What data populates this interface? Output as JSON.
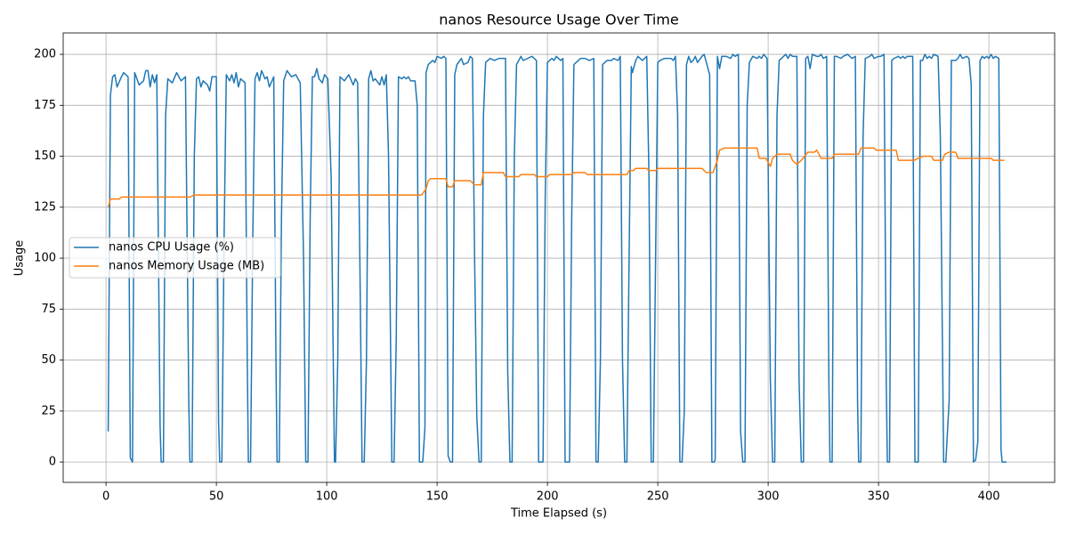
{
  "chart_data": {
    "type": "line",
    "title": "nanos Resource Usage Over Time",
    "xlabel": "Time Elapsed (s)",
    "ylabel": "Usage",
    "xlim": [
      -19.4,
      429.8
    ],
    "ylim": [
      -10,
      210.5
    ],
    "xticks": [
      0,
      50,
      100,
      150,
      200,
      250,
      300,
      350,
      400
    ],
    "yticks": [
      0,
      25,
      50,
      75,
      100,
      125,
      150,
      175,
      200
    ],
    "grid": true,
    "legend": "center left",
    "series": [
      {
        "name": "nanos CPU Usage (%)",
        "color": "#1f77b4",
        "x": [
          1,
          2,
          3,
          4,
          5,
          7,
          8,
          10,
          11,
          12,
          13,
          15,
          17,
          18,
          19,
          20,
          21,
          22,
          23,
          24.5,
          25,
          26,
          27,
          28,
          30,
          32,
          34,
          36,
          37.5,
          38,
          39,
          40,
          41,
          42,
          43,
          44,
          46,
          47,
          48,
          50,
          51,
          51.5,
          52.5,
          53.5,
          54.5,
          56,
          57,
          58,
          59,
          60,
          61,
          63,
          64,
          64.5,
          65.5,
          66.5,
          67.5,
          68.5,
          69.5,
          70.5,
          72,
          73,
          74,
          76,
          77,
          77.5,
          78.5,
          79.5,
          80.5,
          82,
          84,
          86,
          88,
          89.5,
          90.5,
          91.5,
          92.5,
          93.5,
          94.5,
          95.5,
          96.5,
          98,
          99,
          100.5,
          102,
          103.5,
          104,
          105,
          106,
          108,
          110,
          112,
          113,
          114,
          115,
          116,
          117,
          118,
          119,
          120,
          121,
          122,
          124,
          125,
          126,
          127,
          128,
          129.5,
          130.5,
          131.5,
          132.5,
          134,
          135,
          136,
          137,
          138,
          140,
          141,
          142,
          143.5,
          144.5,
          145,
          146,
          148,
          149,
          150,
          152,
          153,
          154,
          155,
          156,
          157,
          158,
          159,
          161,
          162,
          164,
          165,
          166,
          167,
          168,
          169,
          170,
          171,
          172,
          174,
          176,
          178,
          181,
          182,
          183,
          184,
          185,
          186,
          188,
          189,
          191,
          193,
          195,
          196,
          197,
          198,
          199,
          200,
          202,
          203,
          204,
          206,
          207,
          208,
          209,
          210,
          211,
          212,
          214,
          215,
          217,
          219,
          221,
          222,
          223,
          224,
          225,
          227,
          229,
          230,
          232,
          233,
          234,
          235,
          236,
          237,
          238,
          238.5,
          240,
          241,
          243,
          245,
          246,
          247,
          248,
          249,
          250,
          251,
          253,
          256,
          257,
          258,
          259,
          260,
          261,
          262,
          263,
          264,
          265,
          266,
          267,
          268,
          270,
          271,
          273.5,
          274.5,
          275.5,
          276,
          277,
          278,
          279,
          281,
          283,
          284,
          285,
          286.5,
          287.5,
          288.5,
          289.5,
          290.5,
          291.5,
          293,
          295,
          296,
          297,
          298,
          299.5,
          301,
          302,
          303,
          304,
          305,
          307,
          308,
          309,
          310,
          311,
          313,
          314,
          315,
          316,
          317,
          318,
          319,
          320,
          322,
          323,
          324,
          325,
          326.5,
          327.5,
          328,
          329,
          330,
          331,
          333,
          334,
          336,
          338,
          339.5,
          340.5,
          341,
          342,
          343,
          344,
          346,
          347,
          348,
          350,
          351,
          352.5,
          353.5,
          354,
          355,
          356,
          357,
          359,
          360,
          361,
          362,
          363,
          365.5,
          366.5,
          368,
          369,
          370,
          371,
          372,
          373,
          374,
          375,
          377,
          378,
          379.5,
          380.5,
          382,
          383,
          385,
          386,
          387,
          388,
          390,
          391,
          392,
          393,
          394,
          395,
          396,
          397,
          398,
          399,
          400,
          401,
          402,
          403,
          404.5,
          405.5,
          406,
          408
        ],
        "values": [
          15,
          180,
          189,
          190,
          184,
          189,
          191,
          189,
          2,
          0,
          191,
          185,
          187,
          192,
          192,
          184,
          190,
          186,
          190,
          18,
          0,
          0,
          170,
          188,
          186,
          191,
          187,
          189,
          30,
          0,
          0,
          150,
          188,
          189,
          184,
          187,
          185,
          182,
          189,
          189,
          20,
          0,
          0,
          110,
          190,
          187,
          190,
          186,
          191,
          184,
          188,
          186,
          50,
          0,
          0,
          110,
          188,
          191,
          187,
          192,
          188,
          189,
          184,
          189,
          50,
          0,
          0,
          120,
          187,
          192,
          189,
          190,
          186,
          100,
          0,
          0,
          120,
          189,
          189,
          193,
          188,
          186,
          190,
          188,
          140,
          0,
          0,
          50,
          189,
          187,
          190,
          185,
          188,
          186,
          100,
          0,
          0,
          50,
          188,
          192,
          187,
          188,
          185,
          189,
          185,
          190,
          150,
          0,
          0,
          60,
          189,
          188,
          189,
          188,
          189,
          187,
          187,
          175,
          0,
          0,
          17,
          191,
          195,
          197,
          196,
          199,
          198,
          199,
          198,
          3,
          0,
          0,
          190,
          195,
          198,
          195,
          196,
          199,
          198,
          100,
          22,
          0,
          0,
          170,
          196,
          198,
          197,
          198,
          198,
          45,
          0,
          0,
          150,
          195,
          199,
          197,
          198,
          199,
          197,
          0,
          0,
          0,
          130,
          196,
          198,
          197,
          199,
          197,
          198,
          0,
          0,
          0,
          120,
          195,
          197,
          198,
          198,
          197,
          198,
          0,
          0,
          50,
          195,
          197,
          197,
          198,
          197,
          199,
          50,
          0,
          0,
          100,
          194,
          191,
          197,
          199,
          197,
          199,
          140,
          0,
          0,
          100,
          196,
          197,
          198,
          198,
          197,
          199,
          170,
          0,
          0,
          25,
          195,
          199,
          196,
          197,
          199,
          196,
          199,
          200,
          190,
          0,
          0,
          1,
          199,
          193,
          199,
          199,
          198,
          200,
          199,
          200,
          15,
          0,
          0,
          175,
          196,
          199,
          198,
          199,
          198,
          200,
          198,
          40,
          0,
          0,
          170,
          197,
          199,
          200,
          198,
          200,
          199,
          199,
          40,
          0,
          0,
          198,
          199,
          193,
          200,
          199,
          199,
          200,
          198,
          199,
          40,
          0,
          0,
          199,
          199,
          198,
          199,
          200,
          198,
          199,
          30,
          0,
          0,
          160,
          198,
          199,
          200,
          198,
          199,
          199,
          200,
          40,
          0,
          0,
          197,
          198,
          199,
          198,
          199,
          198,
          199,
          199,
          0,
          0,
          197,
          197,
          200,
          198,
          199,
          198,
          200,
          199,
          160,
          0,
          0,
          30,
          197,
          197,
          198,
          200,
          198,
          199,
          198,
          185,
          0,
          1,
          10,
          197,
          199,
          198,
          199,
          198,
          200,
          198,
          199,
          198,
          6,
          0,
          0
        ]
      },
      {
        "name": "nanos Memory Usage (MB)",
        "color": "#ff7f0e",
        "x": [
          1,
          2,
          6,
          7,
          38,
          40,
          143,
          145,
          146,
          147,
          154,
          155,
          157,
          158,
          165,
          167,
          170,
          171,
          180,
          181,
          187,
          188,
          194,
          195,
          200,
          201,
          211,
          212,
          217,
          218,
          236,
          237,
          239,
          240,
          245,
          246,
          249,
          250,
          270,
          272,
          275,
          277,
          278,
          280,
          295,
          296,
          299,
          300,
          301,
          302,
          304,
          310,
          311,
          313,
          315,
          318,
          321,
          322,
          324,
          329,
          330,
          341,
          342,
          348,
          349,
          358,
          359,
          366,
          368,
          370,
          374,
          375,
          379,
          380,
          382,
          385,
          386,
          401,
          402,
          407
        ],
        "values": [
          125,
          129,
          129,
          130,
          130,
          131,
          131,
          134,
          138,
          139,
          139,
          135,
          135,
          138,
          138,
          136,
          136,
          142,
          142,
          140,
          140,
          141,
          141,
          140,
          140,
          141,
          141,
          142,
          142,
          141,
          141,
          143,
          143,
          144,
          144,
          143,
          143,
          144,
          144,
          142,
          142,
          148,
          153,
          154,
          154,
          149,
          149,
          147,
          145,
          149,
          151,
          151,
          148,
          146,
          148,
          152,
          152,
          153,
          149,
          149,
          151,
          151,
          154,
          154,
          153,
          153,
          148,
          148,
          149,
          150,
          150,
          148,
          148,
          151,
          152,
          152,
          149,
          149,
          148,
          148
        ]
      }
    ]
  }
}
